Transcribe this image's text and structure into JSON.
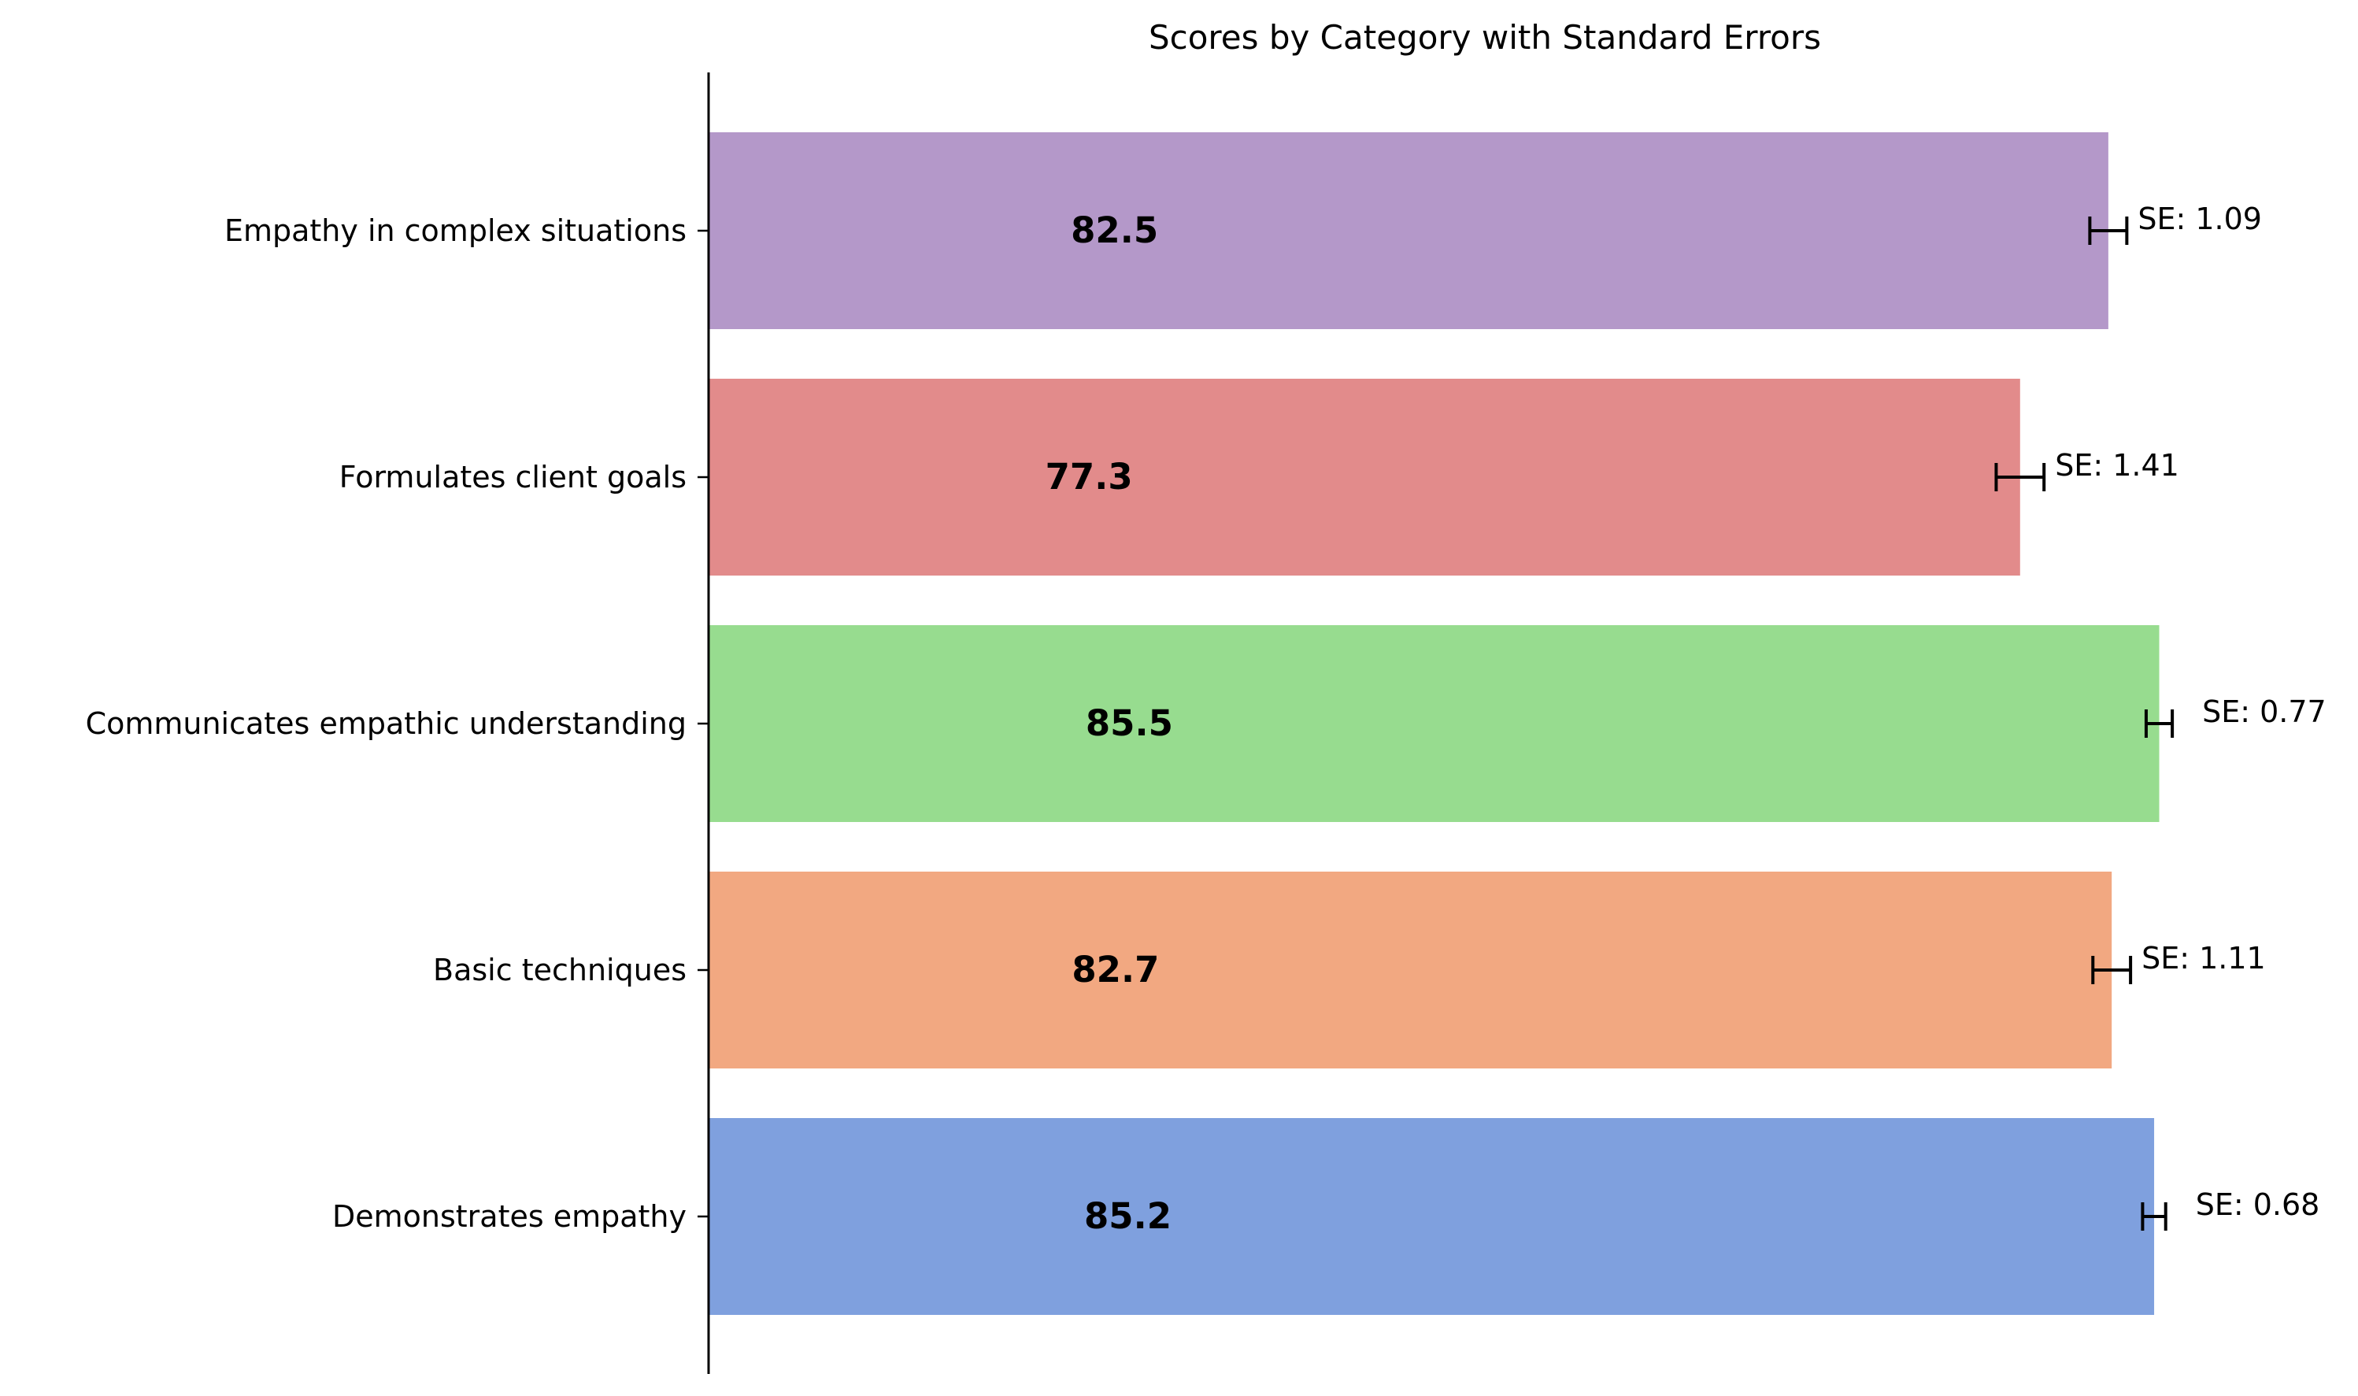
{
  "chart_data": {
    "type": "bar",
    "orientation": "horizontal",
    "title": "Scores by Category with Standard Errors",
    "xlabel": "",
    "ylabel": "",
    "xlim": [
      0,
      95
    ],
    "x_axis_visible": false,
    "grid": false,
    "legend": "none",
    "categories": [
      "Demonstrates empathy",
      "Basic techniques",
      "Communicates empathic understanding",
      "Formulates client goals",
      "Empathy in complex situations"
    ],
    "values": [
      85.2,
      82.7,
      85.5,
      77.3,
      82.5
    ],
    "value_labels": [
      "85.2",
      "82.7",
      "85.5",
      "77.3",
      "82.5"
    ],
    "errors": [
      0.68,
      1.11,
      0.77,
      1.41,
      1.09
    ],
    "error_labels": [
      "SE: 0.68",
      "SE: 1.11",
      "SE: 0.77",
      "SE: 1.41",
      "SE: 1.09"
    ],
    "colors": [
      "#7fa0de",
      "#f2a881",
      "#97dc8f",
      "#e28b8b",
      "#b498c9"
    ],
    "error_bar_color": "#000000"
  }
}
